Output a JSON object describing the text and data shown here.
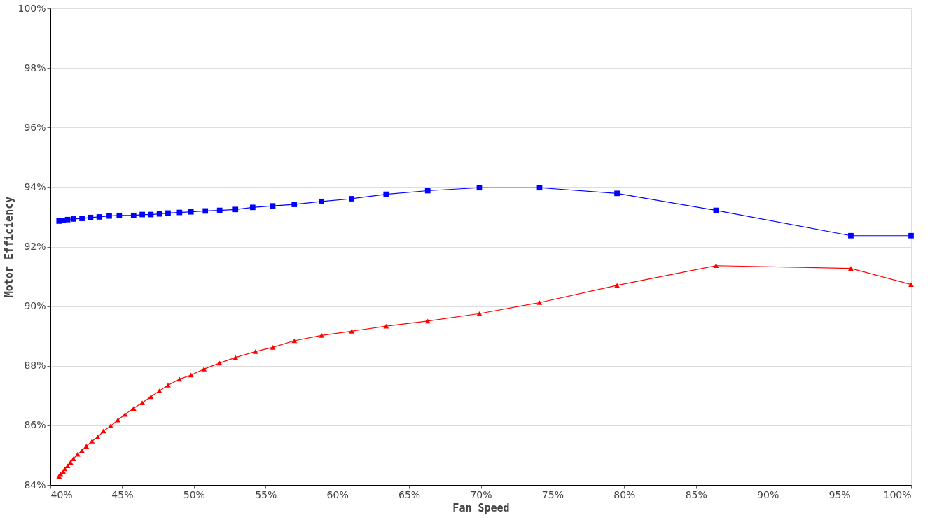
{
  "chart_data": {
    "type": "line",
    "xlabel": "Fan Speed",
    "ylabel": "Motor Efficiency",
    "xlim": [
      40,
      100
    ],
    "ylim": [
      84,
      100
    ],
    "xticks": [
      {
        "value": 40,
        "label": "40%"
      },
      {
        "value": 45,
        "label": "45%"
      },
      {
        "value": 50,
        "label": "50%"
      },
      {
        "value": 55,
        "label": "55%"
      },
      {
        "value": 60,
        "label": "60%"
      },
      {
        "value": 65,
        "label": "65%"
      },
      {
        "value": 70,
        "label": "70%"
      },
      {
        "value": 75,
        "label": "75%"
      },
      {
        "value": 80,
        "label": "80%"
      },
      {
        "value": 85,
        "label": "85%"
      },
      {
        "value": 90,
        "label": "90%"
      },
      {
        "value": 95,
        "label": "95%"
      },
      {
        "value": 100,
        "label": "100%"
      }
    ],
    "yticks": [
      {
        "value": 84,
        "label": "84%"
      },
      {
        "value": 86,
        "label": "86%"
      },
      {
        "value": 88,
        "label": "88%"
      },
      {
        "value": 90,
        "label": "90%"
      },
      {
        "value": 92,
        "label": "92%"
      },
      {
        "value": 94,
        "label": "94%"
      },
      {
        "value": 96,
        "label": "96%"
      },
      {
        "value": 98,
        "label": "98%"
      },
      {
        "value": 100,
        "label": "100%"
      }
    ],
    "grid": "y",
    "line_style": "solid",
    "series": [
      {
        "color": "#0000ff",
        "marker": "square",
        "x": [
          40.6,
          40.9,
          41.2,
          41.6,
          42.2,
          42.8,
          43.4,
          44.1,
          44.8,
          45.8,
          46.4,
          47.0,
          47.6,
          48.2,
          49.0,
          49.8,
          50.8,
          51.8,
          52.9,
          54.1,
          55.5,
          57.0,
          58.9,
          61.0,
          63.4,
          66.3,
          69.9,
          74.1,
          79.5,
          86.4,
          95.8,
          100
        ],
        "values": [
          92.86,
          92.88,
          92.91,
          92.93,
          92.95,
          92.98,
          93.0,
          93.03,
          93.05,
          93.05,
          93.08,
          93.08,
          93.1,
          93.13,
          93.15,
          93.17,
          93.2,
          93.22,
          93.25,
          93.32,
          93.37,
          93.42,
          93.52,
          93.61,
          93.76,
          93.88,
          93.98,
          93.98,
          93.79,
          93.22,
          92.37,
          92.37
        ]
      },
      {
        "color": "#ff0000",
        "marker": "triangle",
        "x": [
          40.6,
          40.7,
          40.9,
          41.0,
          41.2,
          41.4,
          41.6,
          41.9,
          42.2,
          42.5,
          42.9,
          43.3,
          43.7,
          44.2,
          44.7,
          45.2,
          45.8,
          46.4,
          47.0,
          47.6,
          48.2,
          49.0,
          49.8,
          50.7,
          51.8,
          52.9,
          54.3,
          55.5,
          57.0,
          58.9,
          61.0,
          63.4,
          66.3,
          69.9,
          74.1,
          79.5,
          86.4,
          95.8,
          100
        ],
        "values": [
          84.29,
          84.37,
          84.44,
          84.54,
          84.64,
          84.76,
          84.88,
          85.03,
          85.15,
          85.3,
          85.47,
          85.61,
          85.81,
          85.98,
          86.18,
          86.37,
          86.57,
          86.76,
          86.96,
          87.16,
          87.35,
          87.55,
          87.69,
          87.89,
          88.09,
          88.28,
          88.48,
          88.62,
          88.84,
          89.02,
          89.16,
          89.33,
          89.5,
          89.75,
          90.12,
          90.7,
          91.36,
          91.27,
          90.73
        ]
      }
    ]
  }
}
